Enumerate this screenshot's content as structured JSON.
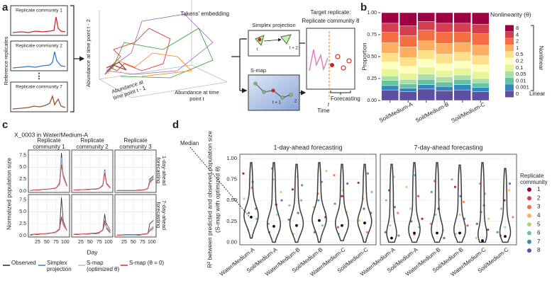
{
  "diagram": {
    "label": "a",
    "reference_label": "Reference replicates",
    "replicates": [
      "Replicate community 1",
      "Replicate community 2",
      "Replicate community 7"
    ],
    "embedding_title": "Takens' embedding",
    "axis_t2": "Abundance at time point t - 2",
    "axis_t1": "Abundance at time point t - 1",
    "axis_t": "Abundance at time point t",
    "simplex": "Simplex projection",
    "simplex_marks": [
      "t",
      "t + 2"
    ],
    "smap": "S-map",
    "smap_marks": [
      "t + 1",
      "2"
    ],
    "target": [
      "Target replicate:",
      "Replicate community 8"
    ],
    "forecasting": "Forecasting",
    "time": "Time",
    "t_mark": "t"
  },
  "chart_data": [
    {
      "type": "stacked-bar",
      "panel_label": "b",
      "y_label": "Proportion",
      "legend_title": "Nonlinearity (θ)",
      "legend_groups": [
        "Nonlinear",
        "Linear"
      ],
      "categories": [
        null,
        "Soil/Medium-A",
        null,
        "Soil/Medium-B",
        null,
        "Soil/Medium-C"
      ],
      "ylim": [
        0,
        1
      ],
      "yticks": [
        {
          "value": 0,
          "label": "0.00"
        },
        {
          "value": 0.25,
          "label": "0.25"
        },
        {
          "value": 0.5,
          "label": "0.50"
        },
        {
          "value": 0.75,
          "label": "0.75"
        },
        {
          "value": 1,
          "label": "1.00"
        }
      ],
      "series": [
        {
          "name": "0",
          "color": "#5e4fa2",
          "values": [
            0.12,
            0.1,
            0.13,
            0.11,
            0.12,
            0.1
          ]
        },
        {
          "name": "0.001",
          "color": "#3288bd",
          "values": [
            0.05,
            0.04,
            0.05,
            0.05,
            0.06,
            0.05
          ]
        },
        {
          "name": "0.01",
          "color": "#66c2a5",
          "values": [
            0.06,
            0.05,
            0.06,
            0.05,
            0.06,
            0.05
          ]
        },
        {
          "name": "0.05",
          "color": "#abdda4",
          "values": [
            0.05,
            0.05,
            0.06,
            0.06,
            0.05,
            0.05
          ]
        },
        {
          "name": "0.1",
          "color": "#e6f598",
          "values": [
            0.08,
            0.07,
            0.08,
            0.07,
            0.08,
            0.08
          ]
        },
        {
          "name": "0.2",
          "color": "#ffffbf",
          "values": [
            0.08,
            0.08,
            0.09,
            0.08,
            0.08,
            0.08
          ]
        },
        {
          "name": "0.5",
          "color": "#fee08b",
          "values": [
            0.1,
            0.1,
            0.1,
            0.11,
            0.1,
            0.1
          ]
        },
        {
          "name": "1",
          "color": "#fdae61",
          "values": [
            0.12,
            0.12,
            0.11,
            0.12,
            0.11,
            0.12
          ]
        },
        {
          "name": "2",
          "color": "#f46d43",
          "values": [
            0.12,
            0.13,
            0.12,
            0.13,
            0.12,
            0.13
          ]
        },
        {
          "name": "4",
          "color": "#d53e4f",
          "values": [
            0.1,
            0.11,
            0.1,
            0.1,
            0.1,
            0.11
          ]
        },
        {
          "name": "8",
          "color": "#9e0142",
          "values": [
            0.12,
            0.15,
            0.1,
            0.12,
            0.12,
            0.13
          ]
        }
      ]
    },
    {
      "type": "line",
      "panel_label": "c",
      "title": "X_0003 in Water/Medium-A",
      "x_label": "Day",
      "y_label": "Normalized population size",
      "columns": [
        "Replicate community 1",
        "Replicate community 2",
        "Replicate community 3"
      ],
      "rows": [
        "1-day-ahead forecasting",
        "7-day-ahead forecasting"
      ],
      "xlim": [
        0,
        112
      ],
      "xticks": [
        25,
        50,
        75,
        100
      ],
      "ylim": [
        -0.3,
        8.6
      ],
      "yticks": [
        {
          "value": 0,
          "label": "0.0"
        },
        2.5,
        {
          "value": 5,
          "label": "5.0"
        },
        7.5
      ],
      "grid": true,
      "series": [
        {
          "name": "Observed",
          "color": "#333333"
        },
        {
          "name": "Simplex projection",
          "color": "#4a7fc1"
        },
        {
          "name": "S-map (optimized θ)",
          "color": "#9ecae1"
        },
        {
          "name": "S-map (θ = 0)",
          "color": "#e3342f"
        }
      ],
      "facets": [
        {
          "x": [
            5,
            15,
            25,
            35,
            45,
            55,
            65,
            75,
            85,
            90,
            95,
            105
          ],
          "values": [
            [
              0.1,
              0.2,
              0.2,
              0.3,
              0.3,
              0.4,
              0.5,
              0.6,
              1.5,
              8.0,
              3.0,
              1.0
            ],
            [
              0.1,
              0.2,
              0.2,
              0.3,
              0.3,
              0.4,
              0.5,
              0.6,
              1.8,
              6.5,
              3.5,
              1.2
            ],
            [
              0.1,
              0.2,
              0.3,
              0.3,
              0.3,
              0.4,
              0.5,
              0.7,
              1.6,
              7.0,
              3.2,
              1.1
            ],
            [
              0.1,
              0.2,
              0.2,
              0.3,
              0.4,
              0.4,
              0.5,
              0.6,
              1.4,
              5.5,
              3.0,
              1.0
            ]
          ]
        },
        {
          "x": [
            5,
            15,
            25,
            35,
            45,
            55,
            65,
            75,
            85,
            90,
            95,
            105
          ],
          "values": [
            [
              0.2,
              0.2,
              0.3,
              0.3,
              0.3,
              0.4,
              0.4,
              0.5,
              1.2,
              4.5,
              1.5,
              0.6
            ],
            [
              0.2,
              0.2,
              0.3,
              0.3,
              0.4,
              0.4,
              0.4,
              0.5,
              1.4,
              4.0,
              1.7,
              0.7
            ],
            [
              0.2,
              0.3,
              0.3,
              0.3,
              0.3,
              0.4,
              0.5,
              0.5,
              1.3,
              4.2,
              1.6,
              0.6
            ],
            [
              0.2,
              0.2,
              0.3,
              0.3,
              0.3,
              0.4,
              0.4,
              0.6,
              1.1,
              3.8,
              1.5,
              0.7
            ]
          ]
        },
        {
          "x": [
            5,
            15,
            25,
            35,
            45,
            55,
            65,
            75,
            85,
            90,
            95,
            105
          ],
          "values": [
            [
              0.1,
              0.1,
              0.1,
              0.1,
              0.1,
              0.1,
              0.1,
              0.2,
              0.3,
              0.5,
              2.5,
              3.2
            ],
            [
              0.1,
              0.1,
              0.1,
              0.1,
              0.1,
              0.1,
              0.2,
              0.2,
              0.3,
              0.6,
              2.0,
              2.8
            ],
            [
              0.1,
              0.1,
              0.1,
              0.1,
              0.1,
              0.1,
              0.1,
              0.2,
              0.3,
              0.5,
              2.2,
              3.0
            ],
            [
              0.1,
              0.1,
              0.1,
              0.1,
              0.1,
              0.1,
              0.2,
              0.2,
              0.4,
              0.6,
              1.8,
              2.5
            ]
          ]
        },
        {
          "x": [
            5,
            15,
            25,
            35,
            45,
            55,
            65,
            75,
            85,
            90,
            95,
            105
          ],
          "values": [
            [
              0.1,
              0.2,
              0.2,
              0.3,
              0.3,
              0.4,
              0.5,
              0.6,
              1.5,
              8.0,
              3.0,
              1.0
            ],
            [
              0.2,
              0.3,
              0.3,
              0.3,
              0.4,
              0.4,
              0.5,
              0.6,
              1.2,
              3.5,
              2.5,
              1.0
            ],
            [
              0.2,
              0.2,
              0.3,
              0.3,
              0.3,
              0.4,
              0.5,
              0.6,
              1.3,
              4.0,
              2.6,
              1.0
            ],
            [
              0.2,
              0.3,
              0.3,
              0.4,
              0.4,
              0.5,
              0.6,
              0.8,
              1.5,
              4.0,
              2.2,
              1.1
            ]
          ]
        },
        {
          "x": [
            5,
            15,
            25,
            35,
            45,
            55,
            65,
            75,
            85,
            90,
            95,
            105
          ],
          "values": [
            [
              0.2,
              0.2,
              0.3,
              0.3,
              0.3,
              0.4,
              0.4,
              0.5,
              1.2,
              4.5,
              1.5,
              0.6
            ],
            [
              0.2,
              0.3,
              0.3,
              0.3,
              0.3,
              0.4,
              0.5,
              0.6,
              1.0,
              2.5,
              1.8,
              0.8
            ],
            [
              0.2,
              0.3,
              0.3,
              0.3,
              0.4,
              0.4,
              0.5,
              0.6,
              1.0,
              2.8,
              1.7,
              0.8
            ],
            [
              0.3,
              0.3,
              0.3,
              0.4,
              0.4,
              0.5,
              0.5,
              0.7,
              1.2,
              3.0,
              2.5,
              1.0
            ]
          ]
        },
        {
          "x": [
            5,
            15,
            25,
            35,
            45,
            55,
            65,
            75,
            85,
            90,
            95,
            105
          ],
          "values": [
            [
              0.1,
              0.1,
              0.1,
              0.1,
              0.1,
              0.1,
              0.1,
              0.2,
              0.3,
              0.5,
              2.5,
              3.2
            ],
            [
              0.1,
              0.1,
              0.1,
              0.1,
              0.1,
              0.2,
              0.2,
              0.2,
              0.3,
              0.4,
              1.2,
              1.8
            ],
            [
              0.1,
              0.1,
              0.1,
              0.1,
              0.1,
              0.1,
              0.2,
              0.2,
              0.3,
              0.4,
              1.3,
              2.0
            ],
            [
              0.1,
              0.1,
              0.2,
              0.2,
              0.2,
              0.2,
              0.2,
              0.3,
              0.4,
              0.5,
              1.0,
              1.5
            ]
          ]
        }
      ]
    },
    {
      "type": "violin",
      "panel_label": "d",
      "y_label": [
        "R² between predicted and observed population size",
        "(S-map with optimized θ)"
      ],
      "annotation": "Median",
      "facets": [
        "1-day-ahead forecasting",
        "7-day-ahead forecasting"
      ],
      "categories": [
        "Water/Medium-A",
        "Soil/Medium-A",
        "Water/Medium-B",
        "Soil/Medium-B",
        "Water/Medium-C",
        "Soil/Medium-C"
      ],
      "ylim": [
        -0.03,
        1.05
      ],
      "yticks": [
        {
          "value": 0,
          "label": "0.00"
        },
        {
          "value": 0.25,
          "label": "0.25"
        },
        {
          "value": 0.5,
          "label": "0.50"
        },
        {
          "value": 0.75,
          "label": "0.75"
        },
        {
          "value": 1,
          "label": "1.00"
        }
      ],
      "grid": true,
      "medians": [
        [
          0.3,
          0.19,
          0.2,
          0.26,
          0.2,
          0.23
        ],
        [
          0.05,
          0.11,
          0.11,
          0.11,
          0.02,
          0.07
        ]
      ],
      "mins": [
        [
          0.05,
          0,
          0,
          0,
          0.02,
          0
        ],
        [
          0,
          0,
          0,
          0,
          0,
          0
        ]
      ],
      "maxs": [
        [
          0.95,
          0.95,
          0.93,
          0.95,
          0.93,
          0.93
        ],
        [
          0.93,
          0.95,
          0.95,
          0.92,
          0.95,
          0.88
        ]
      ],
      "legend_title": "Replicate community",
      "series": [
        {
          "name": "1",
          "color": "#9e0142",
          "values": [
            [
              0.82,
              0.45,
              0.63,
              0.3,
              0.55,
              0.71
            ],
            [
              0.62,
              0.28,
              0.4,
              0.66,
              0.15,
              0.5
            ]
          ]
        },
        {
          "name": "2",
          "color": "#d53e4f",
          "values": [
            [
              0.4,
              0.88,
              0.27,
              0.72,
              0.18,
              0.35
            ],
            [
              0.12,
              0.55,
              0.73,
              0.2,
              0.44,
              0.08
            ]
          ]
        },
        {
          "name": "3",
          "color": "#f46d43",
          "values": [
            [
              0.65,
              0.22,
              0.5,
              0.58,
              0.8,
              0.12
            ],
            [
              0.35,
              0.09,
              0.22,
              0.48,
              0.7,
              0.3
            ]
          ]
        },
        {
          "name": "4",
          "color": "#fdae61",
          "values": [
            [
              0.15,
              0.6,
              0.78,
              0.42,
              0.36,
              0.52
            ],
            [
              0.78,
              0.4,
              0.14,
              0.33,
              0.05,
              0.62
            ]
          ]
        },
        {
          "name": "5",
          "color": "#a6d96a",
          "values": [
            [
              0.52,
              0.33,
              0.1,
              0.85,
              0.62,
              0.26
            ],
            [
              0.2,
              0.66,
              0.51,
              0.1,
              0.28,
              0.18
            ]
          ]
        },
        {
          "name": "6",
          "color": "#66c2a5",
          "values": [
            [
              0.28,
              0.75,
              0.44,
              0.2,
              0.1,
              0.6
            ],
            [
              0.5,
              0.18,
              0.33,
              0.75,
              0.58,
              0.4
            ]
          ]
        },
        {
          "name": "7",
          "color": "#3288bd",
          "values": [
            [
              0.72,
              0.12,
              0.68,
              0.5,
              0.46,
              0.82
            ],
            [
              0.08,
              0.8,
              0.6,
              0.28,
              0.36,
              0.12
            ]
          ]
        },
        {
          "name": "8",
          "color": "#5e4fa2",
          "values": [
            [
              0.35,
              0.5,
              0.35,
              0.12,
              0.7,
              0.4
            ],
            [
              0.42,
              0.25,
              0.05,
              0.55,
              0.22,
              0.7
            ]
          ]
        }
      ]
    }
  ]
}
